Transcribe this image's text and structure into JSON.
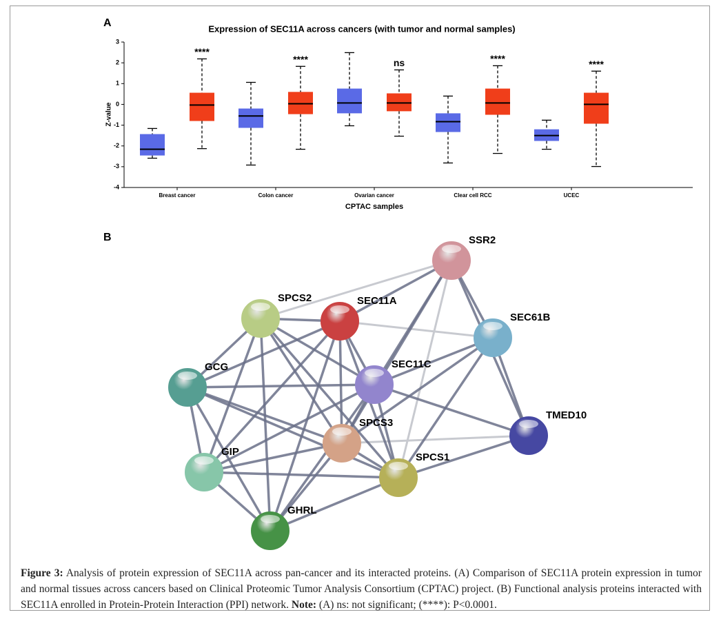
{
  "panel_a": "A",
  "panel_b": "B",
  "chart_data": {
    "type": "box",
    "title": "Expression of SEC11A across cancers (with tumor and normal samples)",
    "x_label": "CPTAC samples",
    "y_label": "Z-value",
    "categories": [
      "Breast cancer",
      "Colon cancer",
      "Ovarian cancer",
      "Clear cell RCC",
      "UCEC"
    ],
    "ylim": [
      -4,
      3
    ],
    "yticks": [
      -4,
      -3,
      -2,
      -1,
      0,
      1,
      2,
      3
    ],
    "series": [
      {
        "color": "#5a6ae6",
        "boxes": [
          {
            "min": -2.59,
            "q1": -2.46,
            "median": -2.16,
            "q3": -1.43,
            "max": -1.16
          },
          {
            "min": -2.92,
            "q1": -1.13,
            "median": -0.56,
            "q3": -0.2,
            "max": 1.06
          },
          {
            "min": -1.03,
            "q1": -0.43,
            "median": 0.07,
            "q3": 0.76,
            "max": 2.49
          },
          {
            "min": -2.82,
            "q1": -1.33,
            "median": -0.83,
            "q3": -0.43,
            "max": 0.4
          },
          {
            "min": -2.16,
            "q1": -1.76,
            "median": -1.5,
            "q3": -1.2,
            "max": -0.76
          }
        ]
      },
      {
        "color": "#f03e1a",
        "boxes": [
          {
            "min": -2.13,
            "q1": -0.8,
            "median": -0.03,
            "q3": 0.56,
            "max": 2.19
          },
          {
            "min": -2.16,
            "q1": -0.47,
            "median": 0.03,
            "q3": 0.6,
            "max": 1.83
          },
          {
            "min": -1.53,
            "q1": -0.33,
            "median": 0.07,
            "q3": 0.53,
            "max": 1.66
          },
          {
            "min": -2.36,
            "q1": -0.5,
            "median": 0.07,
            "q3": 0.76,
            "max": 1.86
          },
          {
            "min": -2.99,
            "q1": -0.93,
            "median": 0,
            "q3": 0.56,
            "max": 1.6
          }
        ]
      }
    ],
    "annotations": [
      "****",
      "****",
      "ns",
      "****",
      "****"
    ]
  },
  "network": {
    "nodes": [
      "SSR2",
      "SPCS2",
      "SEC11A",
      "SEC61B",
      "GCG",
      "SEC11C",
      "TMED10",
      "SPCS3",
      "GIP",
      "SPCS1",
      "GHRL"
    ]
  },
  "caption": {
    "label": "Figure 3:",
    "text": "Analysis of protein expression of SEC11A across pan-cancer and its interacted proteins. (A) Comparison of SEC11A protein expression in tumor and normal tissues across cancers based on Clinical Proteomic Tumor Analysis Consortium (CPTAC) project. (B) Functional analysis proteins interacted with SEC11A enrolled in Protein-Protein Interaction (PPI) network.",
    "note_label": "Note:",
    "note": "(A) ns: not significant; (****): P<0.0001."
  }
}
